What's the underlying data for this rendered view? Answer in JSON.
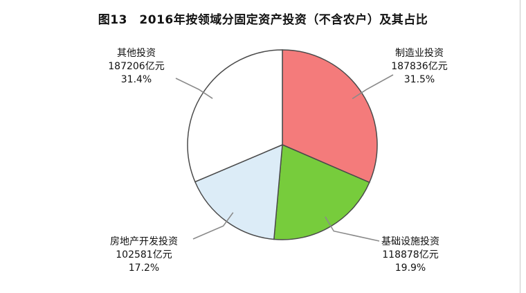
{
  "title": "图13　2016年按领域分固定资产投资（不含农户）及其占比",
  "chart_data": {
    "type": "pie",
    "title": "图13　2016年按领域分固定资产投资（不含农户）及其占比",
    "slices": [
      {
        "name": "制造业投资",
        "value": 187836,
        "value_label": "187836亿元",
        "percent_label": "31.5%",
        "percent": 31.5,
        "color": "#f47b7b"
      },
      {
        "name": "基础设施投资",
        "value": 118878,
        "value_label": "118878亿元",
        "percent_label": "19.9%",
        "percent": 19.9,
        "color": "#77cc3c"
      },
      {
        "name": "房地产开发投资",
        "value": 102581,
        "value_label": "102581亿元",
        "percent_label": "17.2%",
        "percent": 17.2,
        "color": "#dcecf7"
      },
      {
        "name": "其他投资",
        "value": 187206,
        "value_label": "187206亿元",
        "percent_label": "31.4%",
        "percent": 31.4,
        "color": "#ffffff"
      }
    ]
  }
}
